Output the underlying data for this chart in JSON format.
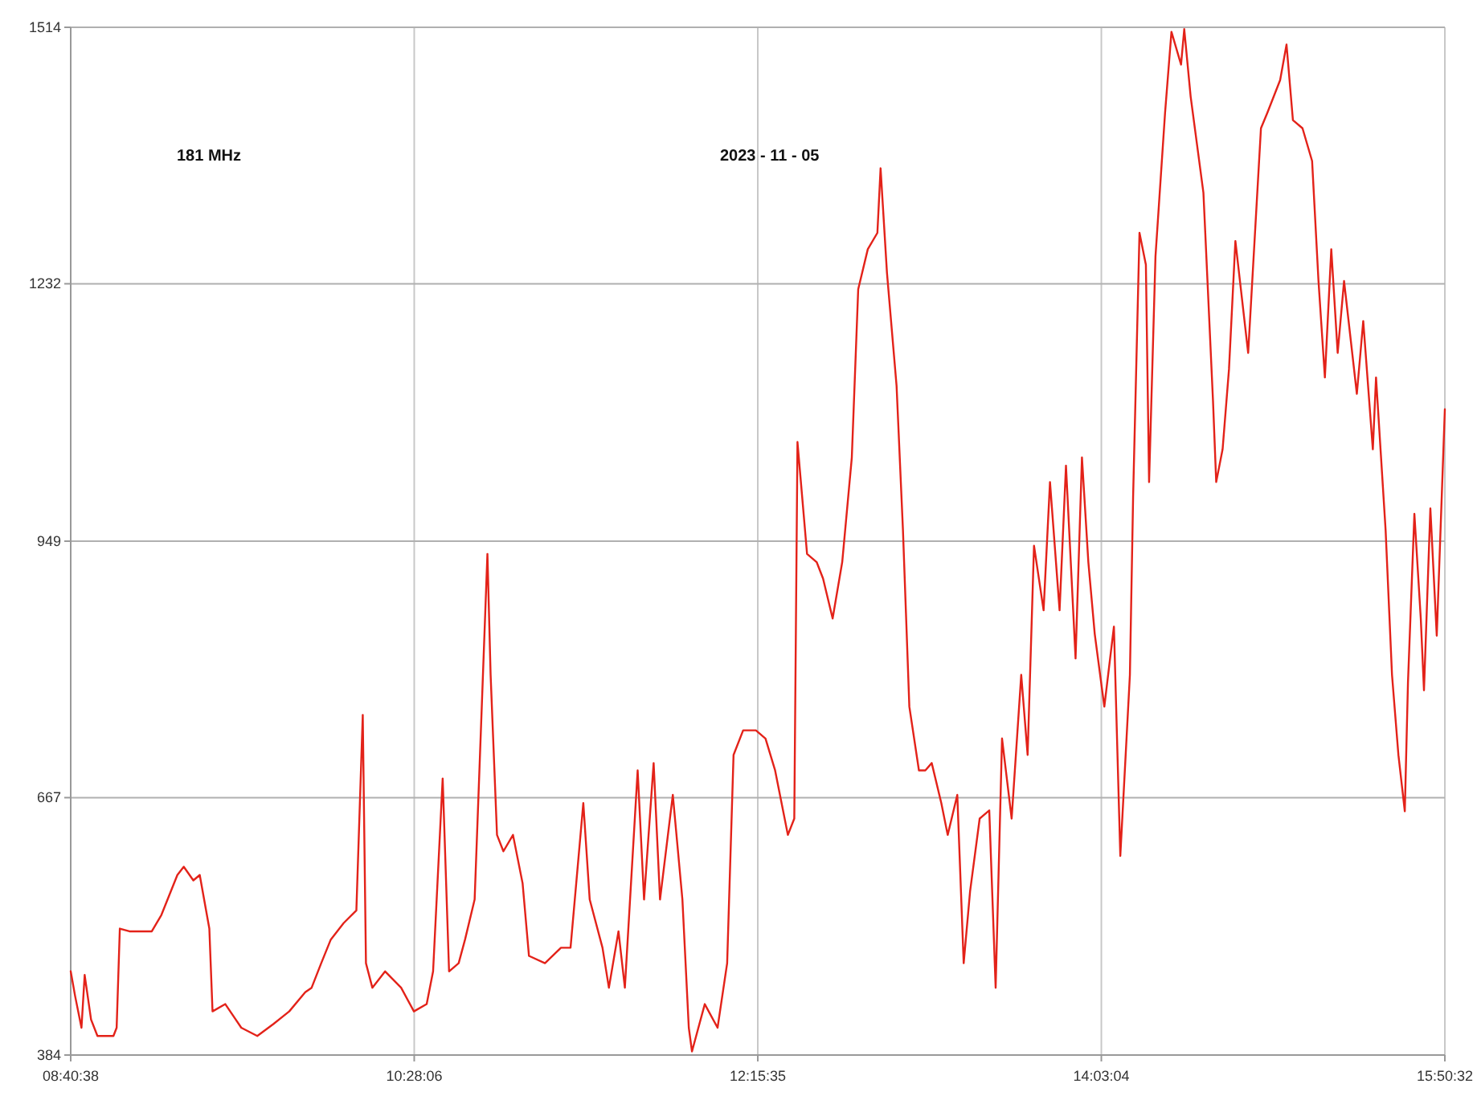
{
  "chart_data": {
    "type": "line",
    "annotations": [
      "181 MHz",
      "2023 - 11 - 05"
    ],
    "xlim": [
      "2023-11-05T08:40:38",
      "2023-11-05T15:50:32"
    ],
    "xticks": [
      {
        "value": "2023-11-05T08:40:38",
        "label": "08:40:38"
      },
      {
        "value": "2023-11-05T10:28:06",
        "label": "10:28:06"
      },
      {
        "value": "2023-11-05T12:15:35",
        "label": "12:15:35"
      },
      {
        "value": "2023-11-05T14:03:04",
        "label": "14:03:04"
      },
      {
        "value": "2023-11-05T15:50:32",
        "label": "15:50:32"
      }
    ],
    "ylim": [
      384,
      1514
    ],
    "yticks": [
      384,
      667,
      949,
      1232,
      1514
    ],
    "grid": true,
    "marker": "none",
    "line_style": "solid",
    "series": [
      {
        "color": "#e32219",
        "x": [
          "2023-11-05T08:40:38",
          "2023-11-05T08:42",
          "2023-11-05T08:44",
          "2023-11-05T08:45",
          "2023-11-05T08:47",
          "2023-11-05T08:49",
          "2023-11-05T08:54",
          "2023-11-05T08:55",
          "2023-11-05T08:56",
          "2023-11-05T08:59",
          "2023-11-05T09:06",
          "2023-11-05T09:09",
          "2023-11-05T09:14",
          "2023-11-05T09:16",
          "2023-11-05T09:19",
          "2023-11-05T09:21",
          "2023-11-05T09:24",
          "2023-11-05T09:25",
          "2023-11-05T09:29",
          "2023-11-05T09:34",
          "2023-11-05T09:39",
          "2023-11-05T09:44",
          "2023-11-05T09:49",
          "2023-11-05T09:54",
          "2023-11-05T09:56",
          "2023-11-05T09:59",
          "2023-11-05T10:02",
          "2023-11-05T10:06",
          "2023-11-05T10:10",
          "2023-11-05T10:12",
          "2023-11-05T10:13",
          "2023-11-05T10:15",
          "2023-11-05T10:19",
          "2023-11-05T10:24",
          "2023-11-05T10:28",
          "2023-11-05T10:32",
          "2023-11-05T10:34",
          "2023-11-05T10:37",
          "2023-11-05T10:39",
          "2023-11-05T10:42",
          "2023-11-05T10:44",
          "2023-11-05T10:47",
          "2023-11-05T10:51",
          "2023-11-05T10:52",
          "2023-11-05T10:54",
          "2023-11-05T10:56",
          "2023-11-05T10:59",
          "2023-11-05T11:02",
          "2023-11-05T11:04",
          "2023-11-05T11:09",
          "2023-11-05T11:14",
          "2023-11-05T11:17",
          "2023-11-05T11:21",
          "2023-11-05T11:23",
          "2023-11-05T11:27",
          "2023-11-05T11:29",
          "2023-11-05T11:32",
          "2023-11-05T11:34",
          "2023-11-05T11:38",
          "2023-11-05T11:40",
          "2023-11-05T11:43",
          "2023-11-05T11:45",
          "2023-11-05T11:49",
          "2023-11-05T11:52",
          "2023-11-05T11:54",
          "2023-11-05T11:55",
          "2023-11-05T11:59",
          "2023-11-05T12:03",
          "2023-11-05T12:06",
          "2023-11-05T12:08",
          "2023-11-05T12:11",
          "2023-11-05T12:15",
          "2023-11-05T12:18",
          "2023-11-05T12:21",
          "2023-11-05T12:25",
          "2023-11-05T12:27",
          "2023-11-05T12:28",
          "2023-11-05T12:31",
          "2023-11-05T12:34",
          "2023-11-05T12:36",
          "2023-11-05T12:39",
          "2023-11-05T12:42",
          "2023-11-05T12:45",
          "2023-11-05T12:47",
          "2023-11-05T12:50",
          "2023-11-05T12:53",
          "2023-11-05T12:54",
          "2023-11-05T12:56",
          "2023-11-05T12:59",
          "2023-11-05T13:01",
          "2023-11-05T13:03",
          "2023-11-05T13:06",
          "2023-11-05T13:08",
          "2023-11-05T13:10",
          "2023-11-05T13:13",
          "2023-11-05T13:15",
          "2023-11-05T13:18",
          "2023-11-05T13:20",
          "2023-11-05T13:22",
          "2023-11-05T13:25",
          "2023-11-05T13:28",
          "2023-11-05T13:30",
          "2023-11-05T13:32",
          "2023-11-05T13:35",
          "2023-11-05T13:38",
          "2023-11-05T13:40",
          "2023-11-05T13:42",
          "2023-11-05T13:45",
          "2023-11-05T13:47",
          "2023-11-05T13:50",
          "2023-11-05T13:52",
          "2023-11-05T13:55",
          "2023-11-05T13:57",
          "2023-11-05T13:59",
          "2023-11-05T14:01",
          "2023-11-05T14:04",
          "2023-11-05T14:07",
          "2023-11-05T14:09",
          "2023-11-05T14:12",
          "2023-11-05T14:13",
          "2023-11-05T14:15",
          "2023-11-05T14:17",
          "2023-11-05T14:18",
          "2023-11-05T14:20",
          "2023-11-05T14:23",
          "2023-11-05T14:25",
          "2023-11-05T14:28",
          "2023-11-05T14:29",
          "2023-11-05T14:31",
          "2023-11-05T14:33",
          "2023-11-05T14:35",
          "2023-11-05T14:38",
          "2023-11-05T14:39",
          "2023-11-05T14:41",
          "2023-11-05T14:43",
          "2023-11-05T14:45",
          "2023-11-05T14:49",
          "2023-11-05T14:53",
          "2023-11-05T14:55",
          "2023-11-05T14:59",
          "2023-11-05T15:01",
          "2023-11-05T15:03",
          "2023-11-05T15:06",
          "2023-11-05T15:09",
          "2023-11-05T15:11",
          "2023-11-05T15:13",
          "2023-11-05T15:15",
          "2023-11-05T15:17",
          "2023-11-05T15:19",
          "2023-11-05T15:23",
          "2023-11-05T15:25",
          "2023-11-05T15:28",
          "2023-11-05T15:29",
          "2023-11-05T15:32",
          "2023-11-05T15:34",
          "2023-11-05T15:36",
          "2023-11-05T15:38",
          "2023-11-05T15:39",
          "2023-11-05T15:41",
          "2023-11-05T15:43",
          "2023-11-05T15:44",
          "2023-11-05T15:46",
          "2023-11-05T15:48",
          "2023-11-05T15:50:32"
        ],
        "values": [
          476,
          449,
          414,
          472,
          423,
          405,
          405,
          414,
          523,
          520,
          520,
          538,
          582,
          591,
          576,
          582,
          523,
          432,
          440,
          414,
          405,
          418,
          432,
          453,
          458,
          485,
          511,
          529,
          543,
          758,
          485,
          458,
          476,
          458,
          432,
          440,
          476,
          688,
          476,
          485,
          511,
          555,
          935,
          802,
          626,
          608,
          626,
          573,
          493,
          485,
          502,
          502,
          661,
          555,
          502,
          458,
          520,
          458,
          697,
          555,
          705,
          555,
          670,
          555,
          414,
          388,
          440,
          414,
          485,
          714,
          741,
          741,
          732,
          697,
          626,
          644,
          1058,
          935,
          926,
          908,
          864,
          926,
          1041,
          1226,
          1270,
          1288,
          1359,
          1244,
          1120,
          961,
          767,
          697,
          697,
          705,
          661,
          626,
          670,
          485,
          564,
          644,
          653,
          458,
          732,
          644,
          802,
          714,
          944,
          873,
          1014,
          873,
          1032,
          820,
          1041,
          926,
          847,
          767,
          855,
          603,
          802,
          997,
          1288,
          1253,
          1014,
          1262,
          1420,
          1509,
          1473,
          1512,
          1438,
          1385,
          1332,
          1103,
          1014,
          1050,
          1138,
          1279,
          1156,
          1403,
          1420,
          1456,
          1495,
          1412,
          1403,
          1367,
          1235,
          1129,
          1270,
          1156,
          1235,
          1111,
          1191,
          1050,
          1129,
          961,
          802,
          714,
          652,
          794,
          979,
          864,
          785,
          985,
          845,
          1094
        ]
      }
    ]
  }
}
